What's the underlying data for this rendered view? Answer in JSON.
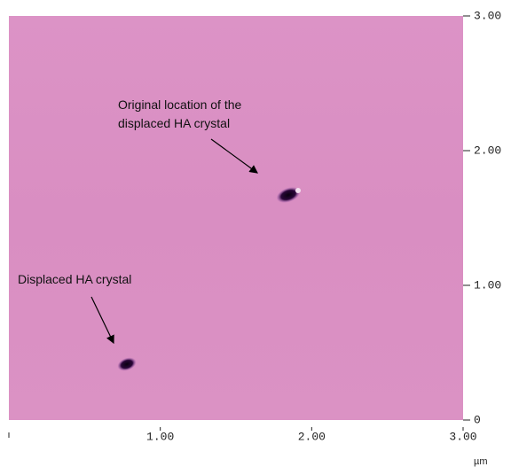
{
  "chart_data": {
    "type": "image",
    "xlim": [
      0,
      3
    ],
    "ylim": [
      0,
      3
    ],
    "xticks": [
      {
        "value": 1,
        "label": "1.00"
      },
      {
        "value": 2,
        "label": "2.00"
      },
      {
        "value": 3,
        "label": "3.00"
      }
    ],
    "yticks": [
      {
        "value": 0,
        "label": "0"
      },
      {
        "value": 1,
        "label": "1.00"
      },
      {
        "value": 2,
        "label": "2.00"
      },
      {
        "value": 3,
        "label": "3.00"
      }
    ],
    "x_unit": "µm",
    "annotations": [
      {
        "lines": [
          "Original location of the",
          "displaced HA crystal"
        ]
      },
      {
        "lines": [
          "Displaced HA crystal"
        ]
      }
    ]
  }
}
